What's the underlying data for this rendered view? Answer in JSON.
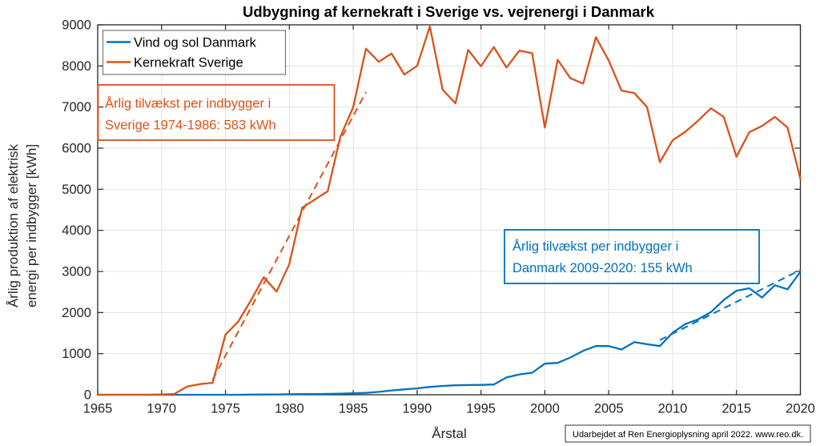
{
  "title": "Udbygning af kernekraft i Sverige vs. vejrenergi i Danmark",
  "axes": {
    "x_label": "Årstal",
    "y_label_line1": "Årlig produktion af elektrisk",
    "y_label_line2": "energi per indbygger [kWh]"
  },
  "legend": {
    "items": [
      {
        "label": "Vind og sol Danmark",
        "color": "#0072BD"
      },
      {
        "label": "Kernekraft Sverige",
        "color": "#D95319"
      }
    ]
  },
  "annotations": [
    {
      "color": "#D95319",
      "line1": "Årlig tilvækst per indbygger i",
      "line2": "Sverige 1974-1986: 583 kWh"
    },
    {
      "color": "#0072BD",
      "line1": "Årlig tilvækst per indbygger i",
      "line2": "Danmark 2009-2020: 155 kWh"
    }
  ],
  "footer": {
    "text": "Udarbejdet af Ren Energioplysning april 2022. www.reo.dk."
  },
  "chart_data": {
    "type": "line",
    "xlim": [
      1965,
      2020
    ],
    "ylim": [
      0,
      9000
    ],
    "grid": true,
    "x_ticks": [
      1965,
      1970,
      1975,
      1980,
      1985,
      1990,
      1995,
      2000,
      2005,
      2010,
      2015,
      2020
    ],
    "y_ticks": [
      0,
      1000,
      2000,
      3000,
      4000,
      5000,
      6000,
      7000,
      8000,
      9000
    ],
    "x": [
      1965,
      1966,
      1967,
      1968,
      1969,
      1970,
      1971,
      1972,
      1973,
      1974,
      1975,
      1976,
      1977,
      1978,
      1979,
      1980,
      1981,
      1982,
      1983,
      1984,
      1985,
      1986,
      1987,
      1988,
      1989,
      1990,
      1991,
      1992,
      1993,
      1994,
      1995,
      1996,
      1997,
      1998,
      1999,
      2000,
      2001,
      2002,
      2003,
      2004,
      2005,
      2006,
      2007,
      2008,
      2009,
      2010,
      2011,
      2012,
      2013,
      2014,
      2015,
      2016,
      2017,
      2018,
      2019,
      2020
    ],
    "series": [
      {
        "name": "Vind og sol Danmark",
        "color": "#0072BD",
        "values": [
          0,
          0,
          0,
          0,
          0,
          0,
          0,
          0,
          0,
          0,
          0,
          0,
          3,
          6,
          8,
          12,
          15,
          18,
          22,
          28,
          35,
          45,
          70,
          105,
          130,
          155,
          190,
          215,
          230,
          235,
          240,
          250,
          420,
          495,
          535,
          755,
          775,
          905,
          1070,
          1185,
          1185,
          1100,
          1280,
          1230,
          1185,
          1510,
          1720,
          1835,
          2010,
          2305,
          2530,
          2590,
          2365,
          2665,
          2565,
          2990
        ]
      },
      {
        "name": "Kernekraft Sverige",
        "color": "#D95319",
        "values": [
          0,
          0,
          0,
          0,
          0,
          5,
          20,
          200,
          260,
          290,
          1460,
          1780,
          2300,
          2860,
          2510,
          3180,
          4550,
          4750,
          4950,
          6280,
          7000,
          8420,
          8100,
          8300,
          7790,
          8000,
          8960,
          7420,
          7090,
          8390,
          7990,
          8460,
          7960,
          8370,
          8310,
          6500,
          8150,
          7700,
          7570,
          8700,
          8130,
          7400,
          7340,
          7000,
          5660,
          6190,
          6400,
          6670,
          6970,
          6760,
          5790,
          6390,
          6540,
          6760,
          6500,
          5250
        ]
      }
    ],
    "trendlines": [
      {
        "name": "trend-sverige",
        "color": "#D95319",
        "x1": 1974,
        "y1": 370,
        "x2": 1986,
        "y2": 7366
      },
      {
        "name": "trend-danmark",
        "color": "#0072BD",
        "x1": 2009,
        "y1": 1330,
        "x2": 2020,
        "y2": 3035
      }
    ]
  }
}
